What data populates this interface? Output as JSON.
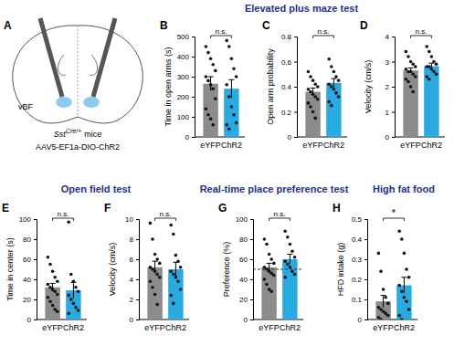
{
  "sections": [
    "Elevated plus maze test",
    "Open field test",
    "Real-time place preference test",
    "High fat food"
  ],
  "diagram": {
    "panel": "A",
    "region": "vBF",
    "gene": "Sst",
    "allele": "Cre/+",
    "suffix": "mice",
    "virus": "AAV5-EF1a-DIO-ChR2"
  },
  "chart_data": [
    {
      "type": "bar",
      "panel": "B",
      "ylabel": "Time in open arms (s)",
      "categories": [
        "eYFP",
        "ChR2"
      ],
      "values": [
        265,
        240
      ],
      "errors": [
        35,
        45
      ],
      "points": [
        [
          450,
          420,
          390,
          360,
          330,
          300,
          280,
          260,
          240,
          190,
          140,
          110,
          90,
          60
        ],
        [
          480,
          450,
          390,
          340,
          300,
          260,
          200,
          150,
          110,
          70,
          60,
          40
        ]
      ],
      "colors": [
        "#8c8c8c",
        "#29aae1"
      ],
      "ylim": [
        0,
        500
      ],
      "yticks": [
        0,
        100,
        200,
        300,
        400,
        500
      ],
      "significance": "n.s."
    },
    {
      "type": "bar",
      "panel": "C",
      "ylabel": "Open arm probability",
      "categories": [
        "eYFP",
        "ChR2"
      ],
      "values": [
        0.36,
        0.43
      ],
      "errors": [
        0.03,
        0.035
      ],
      "points": [
        [
          0.52,
          0.48,
          0.45,
          0.42,
          0.4,
          0.38,
          0.36,
          0.34,
          0.32,
          0.3,
          0.27,
          0.24,
          0.2,
          0.15
        ],
        [
          0.62,
          0.56,
          0.52,
          0.48,
          0.45,
          0.42,
          0.4,
          0.38,
          0.35,
          0.32,
          0.28,
          0.25
        ]
      ],
      "colors": [
        "#8c8c8c",
        "#29aae1"
      ],
      "ylim": [
        0,
        0.8
      ],
      "yticks": [
        0,
        0.2,
        0.4,
        0.6,
        0.8
      ],
      "significance": "n.s."
    },
    {
      "type": "bar",
      "panel": "D",
      "ylabel": "Velocity (cm/s)",
      "categories": [
        "eYFP",
        "ChR2"
      ],
      "values": [
        2.65,
        2.82
      ],
      "errors": [
        0.1,
        0.12
      ],
      "points": [
        [
          3.4,
          3.2,
          3.0,
          2.9,
          2.8,
          2.7,
          2.6,
          2.6,
          2.5,
          2.4,
          2.3,
          2.2,
          2.0,
          1.8
        ],
        [
          3.6,
          3.4,
          3.2,
          3.0,
          2.9,
          2.8,
          2.8,
          2.7,
          2.6,
          2.5,
          2.4,
          2.3
        ]
      ],
      "colors": [
        "#8c8c8c",
        "#29aae1"
      ],
      "ylim": [
        0,
        4
      ],
      "yticks": [
        0,
        1,
        2,
        3,
        4
      ],
      "significance": "n.s."
    },
    {
      "type": "bar",
      "panel": "E",
      "ylabel": "Time in center (s)",
      "categories": [
        "eYFP",
        "ChR2"
      ],
      "values": [
        32,
        29
      ],
      "errors": [
        4,
        8
      ],
      "points": [
        [
          62,
          55,
          48,
          42,
          38,
          35,
          32,
          30,
          28,
          25,
          22,
          18,
          14,
          10,
          8
        ],
        [
          97,
          45,
          38,
          32,
          28,
          24,
          20,
          16,
          12,
          9,
          6
        ]
      ],
      "colors": [
        "#8c8c8c",
        "#29aae1"
      ],
      "ylim": [
        0,
        100
      ],
      "yticks": [
        0,
        20,
        40,
        60,
        80,
        100
      ],
      "significance": "n.s."
    },
    {
      "type": "bar",
      "panel": "F",
      "ylabel": "Velocity (cm/s)",
      "categories": [
        "eYFP",
        "ChR2"
      ],
      "values": [
        5.2,
        5.0
      ],
      "errors": [
        0.6,
        0.7
      ],
      "points": [
        [
          9.6,
          8.0,
          6.5,
          6.0,
          5.6,
          5.2,
          5.0,
          4.8,
          4.5,
          4.2,
          3.8,
          3.2,
          2.5,
          1.5
        ],
        [
          9.4,
          8.5,
          6.4,
          5.8,
          5.2,
          4.8,
          4.5,
          4.2,
          3.8,
          3.0,
          2.4,
          1.6
        ]
      ],
      "colors": [
        "#8c8c8c",
        "#29aae1"
      ],
      "ylim": [
        0,
        10
      ],
      "yticks": [
        0,
        2,
        4,
        6,
        8,
        10
      ],
      "significance": "n.s."
    },
    {
      "type": "bar",
      "panel": "G",
      "ylabel": "Preference (%)",
      "categories": [
        "eYFP",
        "ChR2"
      ],
      "values": [
        52,
        60
      ],
      "errors": [
        4,
        5
      ],
      "points": [
        [
          80,
          75,
          65,
          60,
          56,
          52,
          50,
          48,
          46,
          44,
          40,
          35,
          30,
          28
        ],
        [
          88,
          82,
          75,
          68,
          62,
          58,
          55,
          52,
          48,
          45,
          42
        ]
      ],
      "colors": [
        "#8c8c8c",
        "#29aae1"
      ],
      "ylim": [
        0,
        100
      ],
      "yticks": [
        0,
        20,
        40,
        60,
        80,
        100
      ],
      "reference_line": 50,
      "significance": "n.s."
    },
    {
      "type": "bar",
      "panel": "H",
      "ylabel": "HFD intake (g)",
      "categories": [
        "eYFP",
        "ChR2"
      ],
      "values": [
        0.09,
        0.17
      ],
      "errors": [
        0.03,
        0.04
      ],
      "points": [
        [
          0.33,
          0.24,
          0.15,
          0.11,
          0.08,
          0.06,
          0.05,
          0.04,
          0.03,
          0.02,
          0.01,
          0.0
        ],
        [
          0.44,
          0.4,
          0.33,
          0.25,
          0.21,
          0.17,
          0.14,
          0.11,
          0.09,
          0.05,
          0.02,
          0.0
        ]
      ],
      "colors": [
        "#8c8c8c",
        "#29aae1"
      ],
      "ylim": [
        0,
        0.5
      ],
      "yticks": [
        0,
        0.1,
        0.2,
        0.3,
        0.4,
        0.5
      ],
      "significance": "*"
    }
  ]
}
